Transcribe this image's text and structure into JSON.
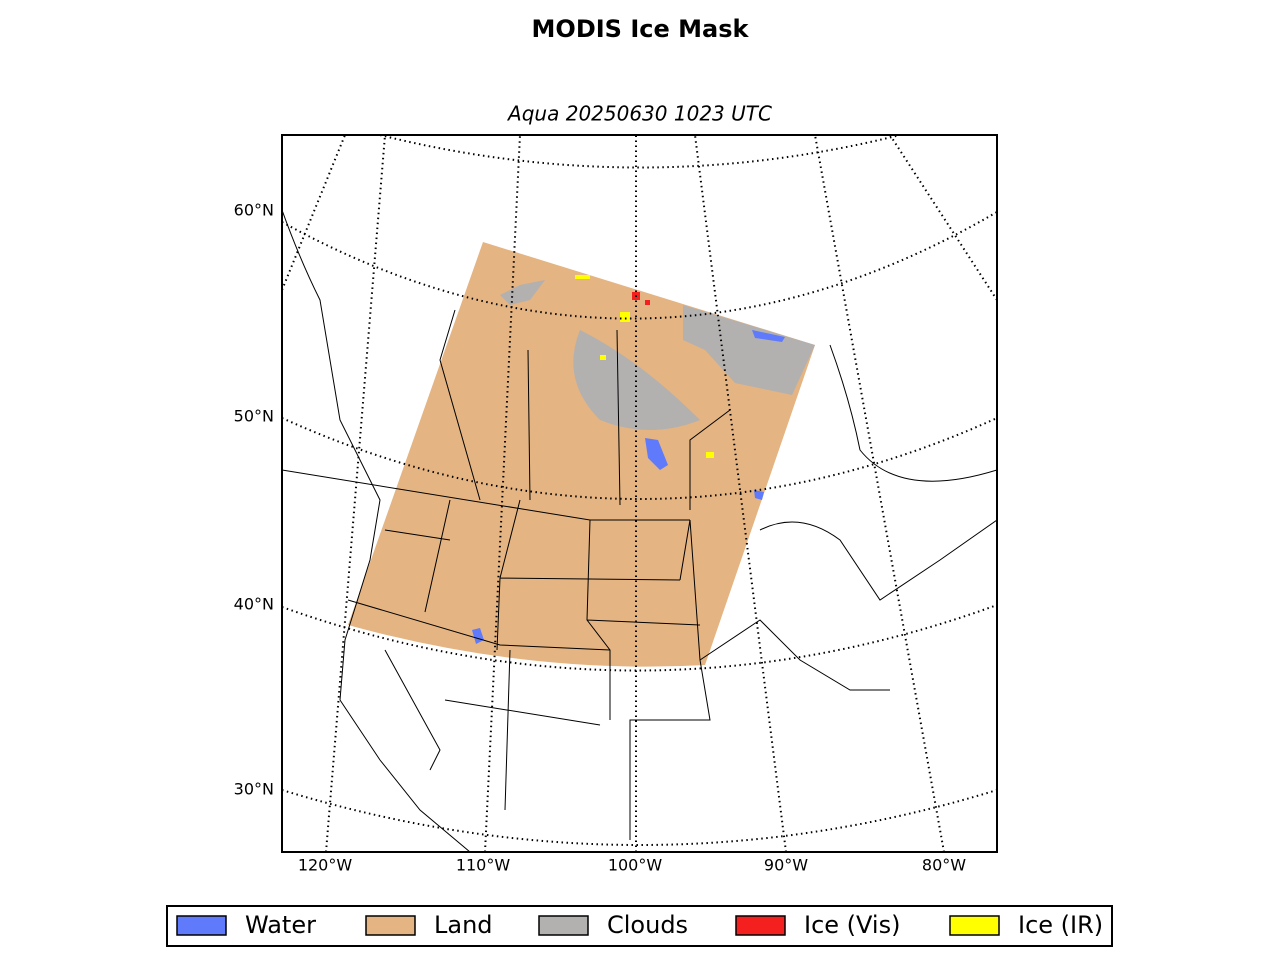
{
  "title": "MODIS Ice Mask",
  "subtitle": "Aqua 20250630 1023 UTC",
  "map": {
    "lat_labels": [
      "60°N",
      "50°N",
      "40°N",
      "30°N"
    ],
    "lon_labels": [
      "120°W",
      "110°W",
      "100°W",
      "90°W",
      "80°W"
    ]
  },
  "legend": [
    {
      "label": "Water",
      "color": "#5f7bfb"
    },
    {
      "label": "Land",
      "color": "#e4b482"
    },
    {
      "label": "Clouds",
      "color": "#b3b0b0"
    },
    {
      "label": "Ice (Vis)",
      "color": "#f42020"
    },
    {
      "label": "Ice (IR)",
      "color": "#ffff00"
    }
  ]
}
